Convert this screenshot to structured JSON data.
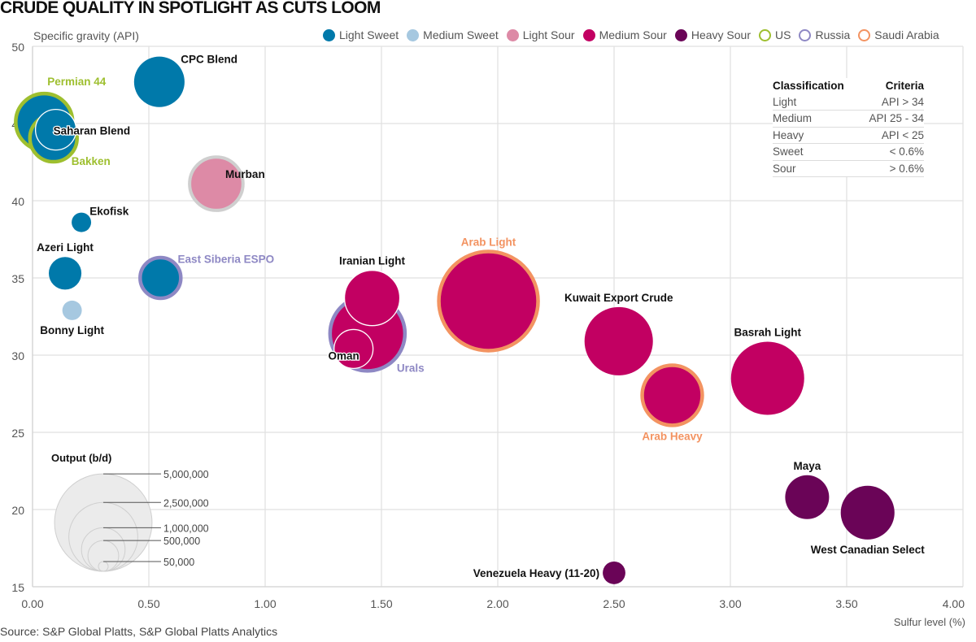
{
  "title": "CRUDE QUALITY IN SPOTLIGHT AS CUTS LOOM",
  "source": "Source: S&P Global Platts, S&P Global Platts Analytics",
  "criteria_table": {
    "header": {
      "classification": "Classification",
      "criteria": "Criteria"
    },
    "rows": [
      {
        "classification": "Light",
        "criteria": "API > 34"
      },
      {
        "classification": "Medium",
        "criteria": "API 25 - 34"
      },
      {
        "classification": "Heavy",
        "criteria": "API < 25"
      },
      {
        "classification": "Sweet",
        "criteria": "< 0.6%"
      },
      {
        "classification": "Sour",
        "criteria": "> 0.6%"
      }
    ]
  },
  "legend": {
    "fills": [
      {
        "name": "Light Sweet",
        "color": "#0079aa"
      },
      {
        "name": "Medium Sweet",
        "color": "#a6c8e0"
      },
      {
        "name": "Light Sour",
        "color": "#dd8aa6"
      },
      {
        "name": "Medium Sour",
        "color": "#c20062"
      },
      {
        "name": "Heavy Sour",
        "color": "#6a0457"
      }
    ],
    "outlines": [
      {
        "name": "US",
        "color": "#9ebf2f"
      },
      {
        "name": "Russia",
        "color": "#8e88c4"
      },
      {
        "name": "Saudi Arabia",
        "color": "#f39361"
      }
    ]
  },
  "size_legend": {
    "title": "Output (b/d)",
    "values": [
      5000000,
      2500000,
      1000000,
      500000,
      50000
    ],
    "labels": [
      "5,000,000",
      "2,500,000",
      "1,000,000",
      "500,000",
      "50,000"
    ]
  },
  "chart_data": {
    "type": "scatter",
    "subtype": "bubble",
    "title": "CRUDE QUALITY IN SPOTLIGHT AS CUTS LOOM",
    "xlabel": "Sulfur level (%)",
    "ylabel": "Specific gravity (API)",
    "xlim": [
      0,
      4
    ],
    "ylim": [
      15,
      50
    ],
    "xticks": [
      0,
      0.5,
      1,
      1.5,
      2,
      2.5,
      3,
      3.5,
      4
    ],
    "xtick_labels": [
      "0.00",
      "0.50",
      "1.00",
      "1.50",
      "2.00",
      "2.50",
      "3.00",
      "3.50",
      "4.00"
    ],
    "yticks": [
      15,
      20,
      25,
      30,
      35,
      40,
      45,
      50
    ],
    "ytick_labels": [
      "15",
      "20",
      "25",
      "30",
      "35",
      "40",
      "45",
      "50"
    ],
    "grid": true,
    "legend_position": "top-right",
    "size_label": "Output (b/d)",
    "points": [
      {
        "name": "Permian 44",
        "x": 0.05,
        "y": 45.1,
        "output": 1700000,
        "class": "Light Sweet",
        "country": "US",
        "label_color": "#9ebf2f",
        "label_pos": "top"
      },
      {
        "name": "Bakken",
        "x": 0.09,
        "y": 44.05,
        "output": 1170000,
        "class": "Light Sweet",
        "country": "US",
        "label_color": "#9ebf2f",
        "label_pos": "bottom-right"
      },
      {
        "name": "Saharan Blend",
        "x": 0.1,
        "y": 44.6,
        "output": 870000,
        "class": "Light Sweet",
        "country": "",
        "label_color": "#111111",
        "label_pos": "inside"
      },
      {
        "name": "CPC Blend",
        "x": 0.545,
        "y": 47.7,
        "output": 1340000,
        "class": "Light Sweet",
        "country": "",
        "label_color": "#111111",
        "label_pos": "top-right"
      },
      {
        "name": "Murban",
        "x": 0.79,
        "y": 41.1,
        "output": 1500000,
        "class": "Light Sour",
        "country": "",
        "label_color": "#111111",
        "label_pos": "right-inside"
      },
      {
        "name": "Ekofisk",
        "x": 0.21,
        "y": 38.6,
        "output": 200000,
        "class": "Light Sweet",
        "country": "",
        "label_color": "#111111",
        "label_pos": "top-right"
      },
      {
        "name": "Azeri Light",
        "x": 0.14,
        "y": 35.3,
        "output": 560000,
        "class": "Light Sweet",
        "country": "",
        "label_color": "#111111",
        "label_pos": "top"
      },
      {
        "name": "East Siberia ESPO",
        "x": 0.55,
        "y": 35.0,
        "output": 870000,
        "class": "Light Sweet",
        "country": "Russia",
        "label_color": "#8e88c4",
        "label_pos": "top-right"
      },
      {
        "name": "Bonny Light",
        "x": 0.17,
        "y": 32.9,
        "output": 200000,
        "class": "Medium Sweet",
        "country": "",
        "label_color": "#111111",
        "label_pos": "bottom"
      },
      {
        "name": "Urals",
        "x": 1.44,
        "y": 31.4,
        "output": 2950000,
        "class": "Medium Sour",
        "country": "Russia",
        "label_color": "#8e88c4",
        "label_pos": "bottom-right"
      },
      {
        "name": "Iranian Light",
        "x": 1.46,
        "y": 33.7,
        "output": 1610000,
        "class": "Medium Sour",
        "country": "",
        "label_color": "#111111",
        "label_pos": "top"
      },
      {
        "name": "Oman",
        "x": 1.38,
        "y": 30.4,
        "output": 800000,
        "class": "Medium Sour",
        "country": "",
        "label_color": "#111111",
        "label_pos": "bottom-left"
      },
      {
        "name": "Arab Light",
        "x": 1.96,
        "y": 33.5,
        "output": 5180000,
        "class": "Medium Sour",
        "country": "Saudi Arabia",
        "label_color": "#f39361",
        "label_pos": "top"
      },
      {
        "name": "Kuwait Export Crude",
        "x": 2.52,
        "y": 30.9,
        "output": 2460000,
        "class": "Medium Sour",
        "country": "",
        "label_color": "#111111",
        "label_pos": "top"
      },
      {
        "name": "Arab Heavy",
        "x": 2.75,
        "y": 27.4,
        "output": 1900000,
        "class": "Medium Sour",
        "country": "Saudi Arabia",
        "label_color": "#f39361",
        "label_pos": "bottom"
      },
      {
        "name": "Basrah Light",
        "x": 3.16,
        "y": 28.5,
        "output": 2820000,
        "class": "Medium Sour",
        "country": "",
        "label_color": "#111111",
        "label_pos": "top"
      },
      {
        "name": "Maya",
        "x": 3.33,
        "y": 20.8,
        "output": 1015000,
        "class": "Heavy Sour",
        "country": "",
        "label_color": "#111111",
        "label_pos": "top"
      },
      {
        "name": "West Canadian Select",
        "x": 3.59,
        "y": 19.8,
        "output": 1520000,
        "class": "Heavy Sour",
        "country": "",
        "label_color": "#111111",
        "label_pos": "bottom"
      },
      {
        "name": "Venezuela Heavy (11-20)",
        "x": 2.5,
        "y": 15.9,
        "output": 270000,
        "class": "Heavy Sour",
        "country": "",
        "label_color": "#111111",
        "label_pos": "left"
      }
    ]
  }
}
